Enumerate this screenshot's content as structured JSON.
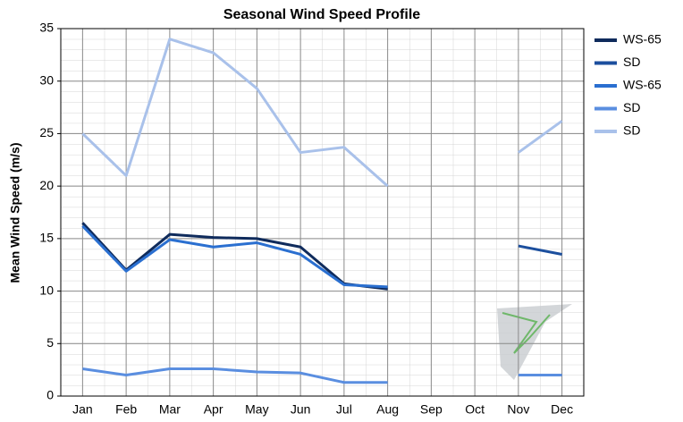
{
  "chart_data": {
    "type": "line",
    "title": "Seasonal Wind Speed Profile",
    "y_label": "Mean Wind Speed (m/s)",
    "categories": [
      "Jan",
      "Feb",
      "Mar",
      "Apr",
      "May",
      "Jun",
      "Jul",
      "Aug",
      "Sep",
      "Oct",
      "Nov",
      "Dec"
    ],
    "series": [
      {
        "name": "WS-65",
        "color": "#0f2b5c",
        "values": [
          16.5,
          12,
          15.4,
          15.1,
          15.0,
          14.2,
          10.7,
          10.2,
          null,
          null,
          null,
          null
        ]
      },
      {
        "name": "SD",
        "color": "#1c4f9e",
        "values": [
          null,
          null,
          null,
          null,
          null,
          null,
          null,
          null,
          null,
          null,
          14.3,
          13.5
        ]
      },
      {
        "name": "WS-65",
        "color": "#2a6fd0",
        "values": [
          16.2,
          11.9,
          14.9,
          14.2,
          14.6,
          13.5,
          10.6,
          10.4,
          null,
          null,
          null,
          null
        ]
      },
      {
        "name": "SD",
        "color": "#5a8ee0",
        "values": [
          2.6,
          2.0,
          2.6,
          2.6,
          2.3,
          2.2,
          1.3,
          1.3,
          null,
          null,
          2.0,
          2.0
        ]
      },
      {
        "name": "SD",
        "color": "#a9c1ea",
        "values": [
          25,
          21,
          34,
          32.7,
          29.3,
          23.2,
          23.7,
          20,
          null,
          null,
          23.2,
          26.2
        ]
      }
    ],
    "ylim": [
      0,
      35
    ],
    "yticks": [
      0,
      5,
      10,
      15,
      20,
      25,
      30,
      35
    ],
    "grid": true,
    "legend": "right"
  }
}
